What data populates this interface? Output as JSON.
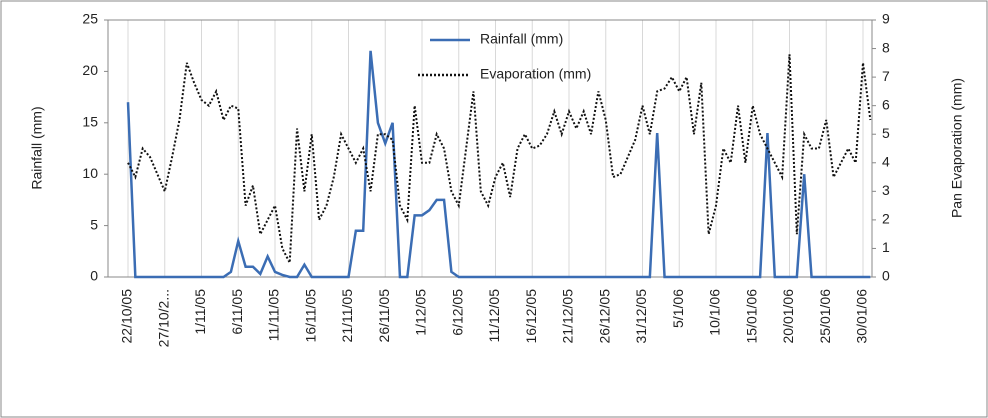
{
  "chart_data": {
    "type": "line",
    "y_label": "Rainfall (mm)",
    "y2_label": "Pan Evaporation (mm)",
    "categories": [
      "22/10/05",
      null,
      null,
      null,
      null,
      "27/10/2...",
      null,
      null,
      null,
      null,
      "1/11/05",
      null,
      null,
      null,
      null,
      "6/11/05",
      null,
      null,
      null,
      null,
      "11/11/05",
      null,
      null,
      null,
      null,
      "16/11/05",
      null,
      null,
      null,
      null,
      "21/11/05",
      null,
      null,
      null,
      null,
      "26/11/05",
      null,
      null,
      null,
      null,
      "1/12/05",
      null,
      null,
      null,
      null,
      "6/12/05",
      null,
      null,
      null,
      null,
      "11/12/05",
      null,
      null,
      null,
      null,
      "16/12/05",
      null,
      null,
      null,
      null,
      "21/12/05",
      null,
      null,
      null,
      null,
      "26/12/05",
      null,
      null,
      null,
      null,
      "31/12/05",
      null,
      null,
      null,
      null,
      "5/1/06",
      null,
      null,
      null,
      null,
      "10/1/06",
      null,
      null,
      null,
      null,
      "15/01/06",
      null,
      null,
      null,
      null,
      "20/01/06",
      null,
      null,
      null,
      null,
      "25/01/06",
      null,
      null,
      null,
      null,
      "30/01/06",
      null
    ],
    "series": [
      {
        "name": "Rainfall (mm)",
        "color": "#3b6db4",
        "style": "solid",
        "values": [
          17,
          0,
          0,
          0,
          0,
          0,
          0,
          0,
          0,
          0,
          0,
          0,
          0,
          0,
          0.5,
          3.5,
          1,
          1,
          0.3,
          2,
          0.5,
          0.2,
          0,
          0,
          1.2,
          0,
          0,
          0,
          0,
          0,
          0,
          4.5,
          4.5,
          22,
          15,
          13,
          15,
          0,
          0,
          6,
          6,
          6.5,
          7.5,
          7.5,
          0.5,
          0,
          0,
          0,
          0,
          0,
          0,
          0,
          0,
          0,
          0,
          0,
          0,
          0,
          0,
          0,
          0,
          0,
          0,
          0,
          0,
          0,
          0,
          0,
          0,
          0,
          0,
          0,
          14,
          0,
          0,
          0,
          0,
          0,
          0,
          0,
          0,
          0,
          0,
          0,
          0,
          0,
          0,
          14,
          0,
          0,
          0,
          0,
          10,
          0,
          0,
          0,
          0,
          0,
          0,
          0,
          0,
          0
        ]
      },
      {
        "name": "Evaporation (mm)",
        "color": "#111111",
        "style": "dotted",
        "axis": "y2",
        "values": [
          4.0,
          3.5,
          4.5,
          4.2,
          3.6,
          3.0,
          4.2,
          5.5,
          7.5,
          6.8,
          6.2,
          6.0,
          6.5,
          5.5,
          6.0,
          5.9,
          2.5,
          3.2,
          1.5,
          2.0,
          2.5,
          1.0,
          0.5,
          5.2,
          3.0,
          5.0,
          2.0,
          2.5,
          3.5,
          5.0,
          4.5,
          4.0,
          4.5,
          3.0,
          5.0,
          5.0,
          4.8,
          2.5,
          2.0,
          6.0,
          4.0,
          4.0,
          5.0,
          4.5,
          3.0,
          2.5,
          4.5,
          6.5,
          3.0,
          2.5,
          3.5,
          4.0,
          2.8,
          4.5,
          5.0,
          4.5,
          4.6,
          5.0,
          5.8,
          5.0,
          5.8,
          5.2,
          5.8,
          5.0,
          6.5,
          5.5,
          3.5,
          3.6,
          4.2,
          4.8,
          6.0,
          5.0,
          6.5,
          6.6,
          7.0,
          6.5,
          7.0,
          5.0,
          6.8,
          1.5,
          2.5,
          4.5,
          4.0,
          6.0,
          4.0,
          6.0,
          5.0,
          4.5,
          4.0,
          3.5,
          7.8,
          1.5,
          5.0,
          4.5,
          4.5,
          5.5,
          3.5,
          4.0,
          4.5,
          4.0,
          7.5,
          5.5
        ]
      }
    ],
    "ylim": [
      0,
      25
    ],
    "yticks": [
      0,
      5,
      10,
      15,
      20,
      25
    ],
    "y2lim": [
      0,
      9
    ],
    "y2ticks": [
      0,
      1,
      2,
      3,
      4,
      5,
      6,
      7,
      8,
      9
    ]
  }
}
